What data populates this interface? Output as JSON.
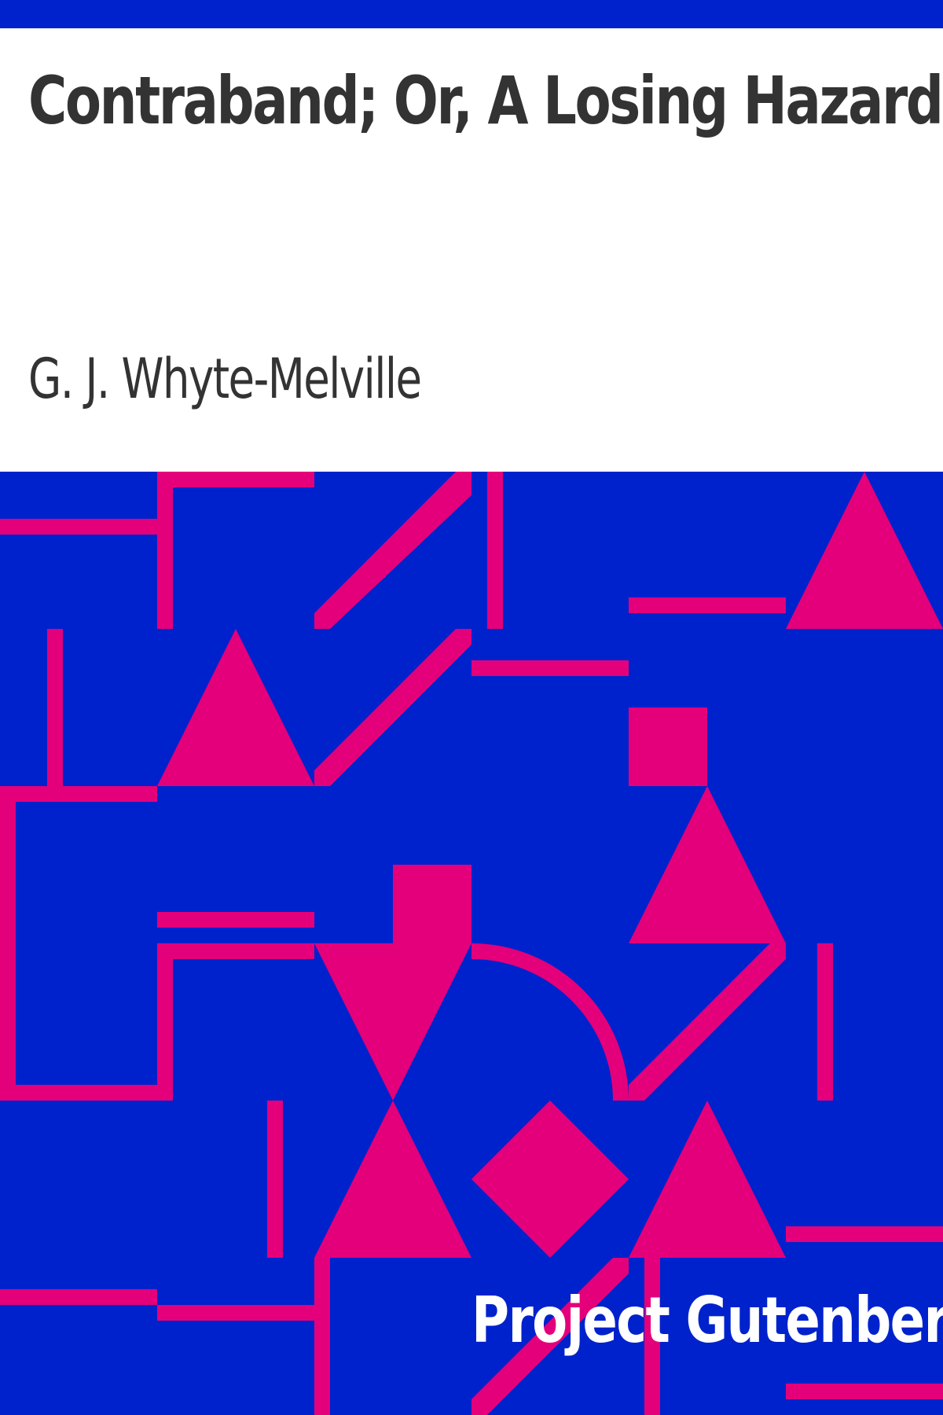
{
  "book": {
    "title": "Contraband; Or, A Losing Hazard",
    "author": "G. J. Whyte-Melville",
    "publisher": "Project Gutenberg"
  },
  "colors": {
    "background": "#ffffff",
    "blue": "#0022cc",
    "pink": "#e4007a",
    "text": "#333333",
    "publisher_text": "#ffffff"
  }
}
